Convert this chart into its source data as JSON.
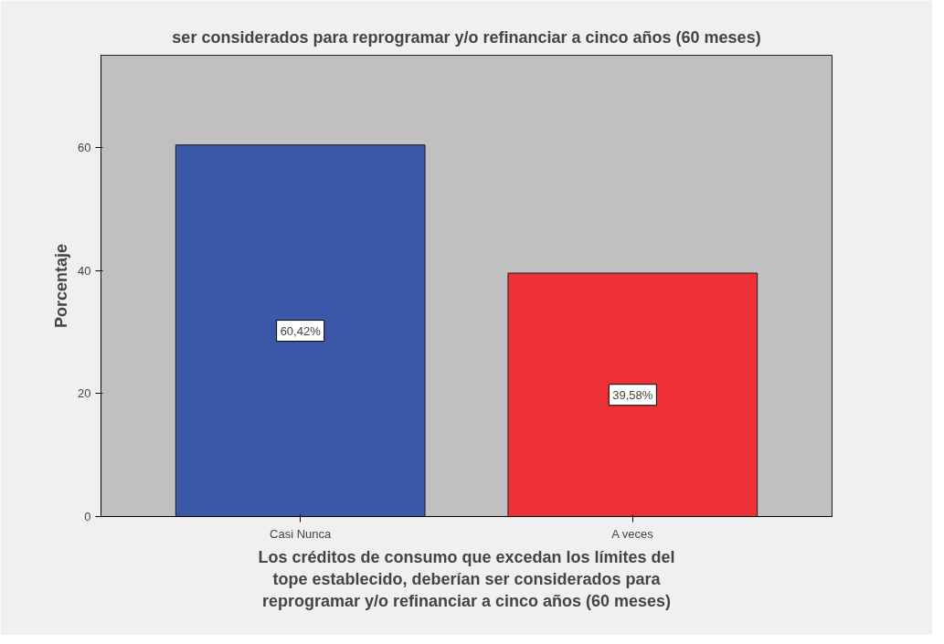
{
  "chart_data": {
    "type": "bar",
    "title": "ser considerados para reprogramar y/o refinanciar a cinco años (60 meses)",
    "xlabel": "Los créditos de consumo que excedan los límites del\ntope establecido, deberían ser considerados para\nreprogramar y/o refinanciar a cinco años (60 meses)",
    "ylabel": "Porcentaje",
    "categories": [
      "Casi Nunca",
      "A veces"
    ],
    "values": [
      60.42,
      39.58
    ],
    "colors": [
      "#3b57a8",
      "#ee3039"
    ],
    "value_labels": [
      "60,42%",
      "39,58%"
    ],
    "ylim": [
      0,
      75
    ],
    "yticks": [
      0,
      20,
      40,
      60
    ],
    "grid": false
  }
}
